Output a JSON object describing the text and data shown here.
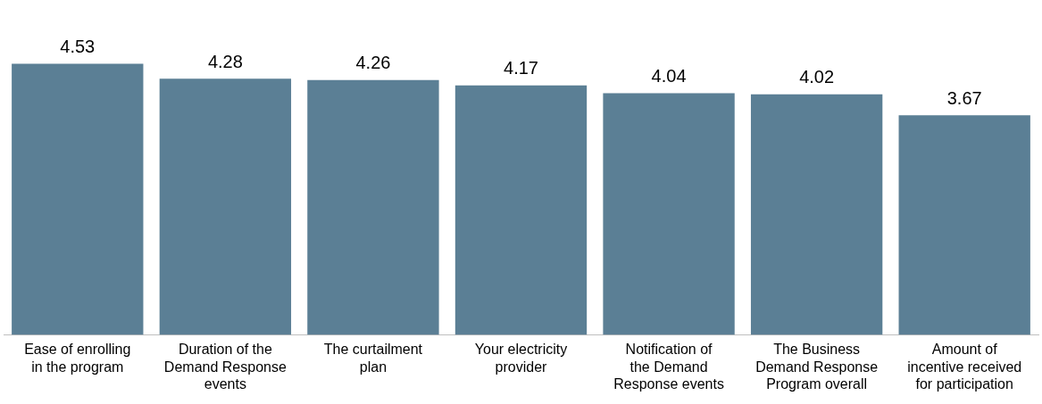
{
  "chart_data": {
    "type": "bar",
    "categories": [
      "Ease of enrolling in the program",
      "Duration of the Demand Response events",
      "The curtailment plan",
      "Your electricity provider",
      "Notification of the Demand Response events",
      "The Business Demand Response Program overall",
      "Amount of incentive received for participation"
    ],
    "values": [
      4.53,
      4.28,
      4.26,
      4.17,
      4.04,
      4.02,
      3.67
    ],
    "color": "#5b7f95",
    "data_labels": true,
    "grid": false,
    "legend": false
  }
}
